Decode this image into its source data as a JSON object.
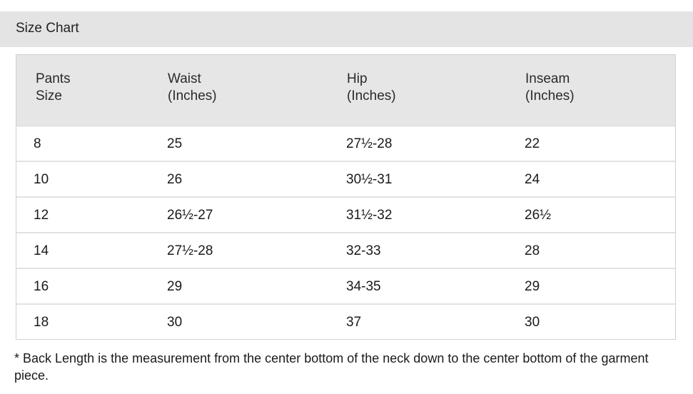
{
  "title": "Size Chart",
  "table": {
    "headers": [
      {
        "line1": "Pants",
        "line2": "Size"
      },
      {
        "line1": "Waist",
        "line2": "(Inches)"
      },
      {
        "line1": "Hip",
        "line2": "(Inches)"
      },
      {
        "line1": "Inseam",
        "line2": "(Inches)"
      }
    ],
    "rows": [
      [
        "8",
        "25",
        "27½-28",
        "22"
      ],
      [
        "10",
        "26",
        "30½-31",
        "24"
      ],
      [
        "12",
        "26½-27",
        "31½-32",
        "26½"
      ],
      [
        "14",
        "27½-28",
        "32-33",
        "28"
      ],
      [
        "16",
        "29",
        "34-35",
        "29"
      ],
      [
        "18",
        "30",
        "37",
        "30"
      ]
    ]
  },
  "footnote": "* Back Length is the measurement from the center bottom of the neck down to the center bottom of the garment piece."
}
